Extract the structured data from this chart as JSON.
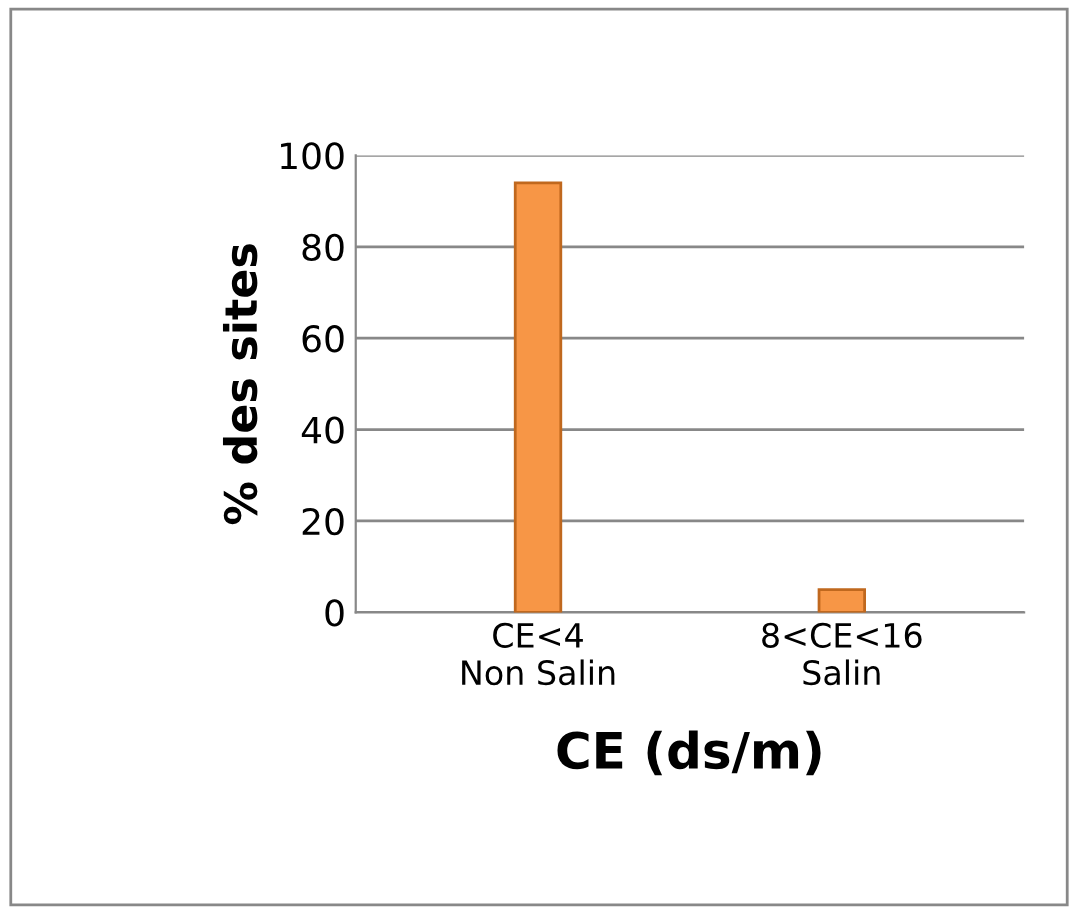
{
  "chart_data": {
    "type": "bar",
    "categories": [
      "CE<4\nNon Salin",
      "8<CE<16\nSalin"
    ],
    "values": [
      94,
      5
    ],
    "color": "#f79646",
    "xlabel": "CE (ds/m)",
    "ylabel": "% des sites",
    "ylim": [
      0,
      100
    ],
    "yticks": [
      0,
      20,
      40,
      60,
      80,
      100
    ],
    "grid": "y",
    "legend": false
  }
}
